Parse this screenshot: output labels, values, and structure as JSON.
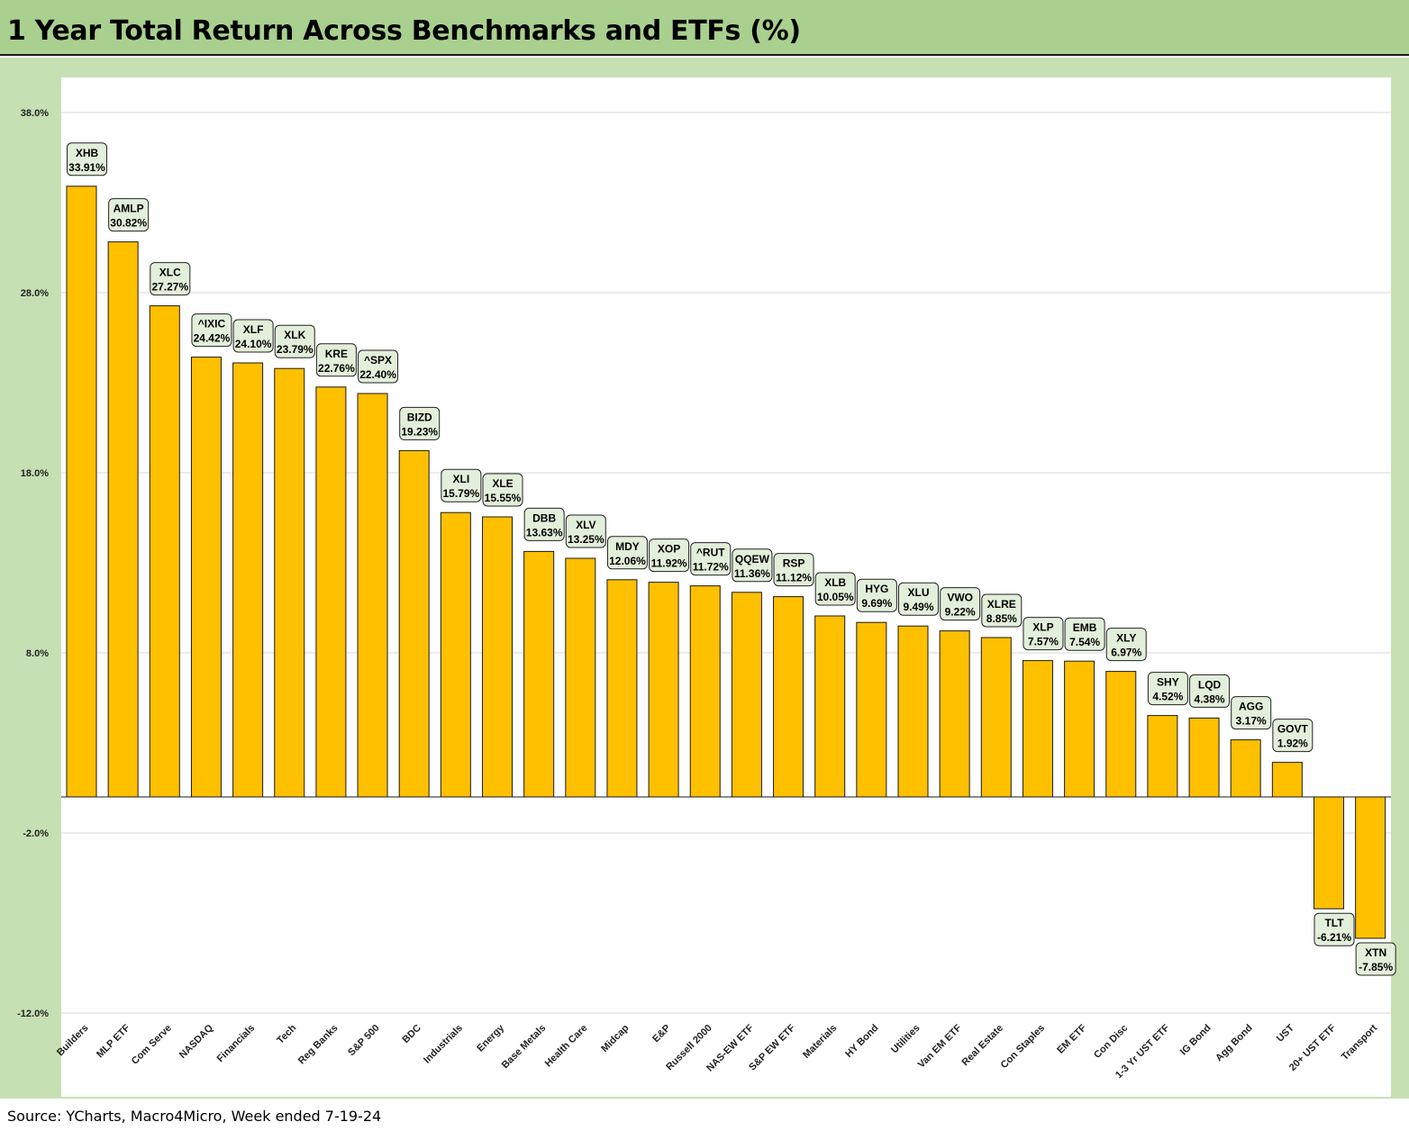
{
  "page": {
    "title": "1 Year Total Return Across Benchmarks and ETFs (%)",
    "source": "Source: YCharts, Macro4Micro, Week ended 7-19-24"
  },
  "colors": {
    "bar": "#ffc000",
    "bar_stroke": "#1a1a1a",
    "label_box": "#e2efda",
    "header_bg": "#a9d08e",
    "frame_bg": "#c6e0b4",
    "gridline": "#d9d9d9"
  },
  "chart_data": {
    "type": "bar",
    "title": "1 Year Total Return Across Benchmarks and ETFs (%)",
    "xlabel": "",
    "ylabel": "",
    "ylim": [
      -12,
      38
    ],
    "yticks": [
      38,
      28,
      18,
      8,
      -2,
      -12
    ],
    "ytick_labels": [
      "38.0%",
      "28.0%",
      "18.0%",
      "8.0%",
      "-2.0%",
      "-12.0%"
    ],
    "grid": true,
    "legend": "none",
    "categories": [
      "Builders",
      "MLP ETF",
      "Com Serve",
      "NASDAQ",
      "Financials",
      "Tech",
      "Reg Banks",
      "S&P 500",
      "BDC",
      "Industrials",
      "Energy",
      "Base Metals",
      "Health Care",
      "Midcap",
      "E&P",
      "Russell 2000",
      "NAS-EW ETF",
      "S&P EW ETF",
      "Materials",
      "HY Bond",
      "Utilities",
      "Van EM ETF",
      "Real Estate",
      "Con Staples",
      "EM ETF",
      "Con Disc",
      "1-3 Yr UST ETF",
      "IG Bond",
      "Agg Bond",
      "UST",
      "20+ UST ETF",
      "Transport"
    ],
    "tickers": [
      "XHB",
      "AMLP",
      "XLC",
      "^IXIC",
      "XLF",
      "XLK",
      "KRE",
      "^SPX",
      "BIZD",
      "XLI",
      "XLE",
      "DBB",
      "XLV",
      "MDY",
      "XOP",
      "^RUT",
      "QQEW",
      "RSP",
      "XLB",
      "HYG",
      "XLU",
      "VWO",
      "XLRE",
      "XLP",
      "EMB",
      "XLY",
      "SHY",
      "LQD",
      "AGG",
      "GOVT",
      "TLT",
      "XTN"
    ],
    "values": [
      33.91,
      30.82,
      27.27,
      24.42,
      24.1,
      23.79,
      22.76,
      22.4,
      19.23,
      15.79,
      15.55,
      13.63,
      13.25,
      12.06,
      11.92,
      11.72,
      11.36,
      11.12,
      10.05,
      9.69,
      9.49,
      9.22,
      8.85,
      7.57,
      7.54,
      6.97,
      4.52,
      4.38,
      3.17,
      1.92,
      -6.21,
      -7.85
    ],
    "value_labels": [
      "33.91%",
      "30.82%",
      "27.27%",
      "24.42%",
      "24.10%",
      "23.79%",
      "22.76%",
      "22.40%",
      "19.23%",
      "15.79%",
      "15.55%",
      "13.63%",
      "13.25%",
      "12.06%",
      "11.92%",
      "11.72%",
      "11.36%",
      "11.12%",
      "10.05%",
      "9.69%",
      "9.49%",
      "9.22%",
      "8.85%",
      "7.57%",
      "7.54%",
      "6.97%",
      "4.52%",
      "4.38%",
      "3.17%",
      "1.92%",
      "-6.21%",
      "-7.85%"
    ]
  }
}
